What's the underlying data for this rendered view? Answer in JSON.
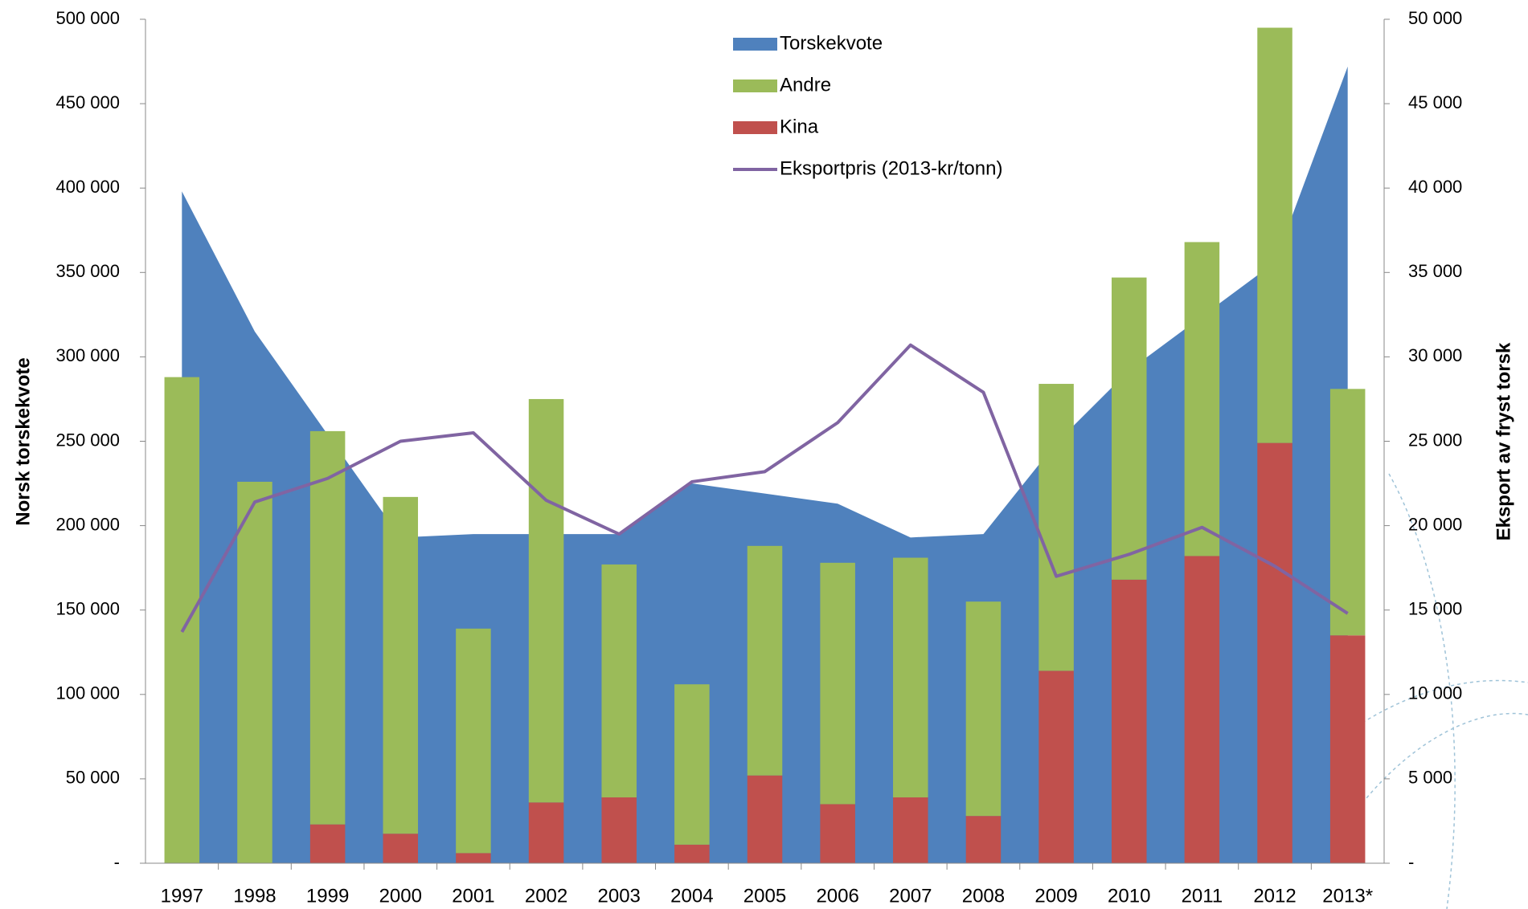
{
  "chart_data": {
    "type": "combo",
    "categories": [
      "1997",
      "1998",
      "1999",
      "2000",
      "2001",
      "2002",
      "2003",
      "2004",
      "2005",
      "2006",
      "2007",
      "2008",
      "2009",
      "2010",
      "2011",
      "2012",
      "2013*"
    ],
    "ylabel": "Norsk torskekvote",
    "y2label": "Eksport av fryst torsk",
    "ylim": [
      0,
      500000
    ],
    "yticks": [
      {
        "value": 0,
        "label": "-"
      },
      {
        "value": 50000,
        "label": "50 000"
      },
      {
        "value": 100000,
        "label": "100 000"
      },
      {
        "value": 150000,
        "label": "150 000"
      },
      {
        "value": 200000,
        "label": "200 000"
      },
      {
        "value": 250000,
        "label": "250 000"
      },
      {
        "value": 300000,
        "label": "300 000"
      },
      {
        "value": 350000,
        "label": "350 000"
      },
      {
        "value": 400000,
        "label": "400 000"
      },
      {
        "value": 450000,
        "label": "450 000"
      },
      {
        "value": 500000,
        "label": "500 000"
      }
    ],
    "y2lim": [
      0,
      50000
    ],
    "y2ticks": [
      {
        "value": 0,
        "label": "-"
      },
      {
        "value": 5000,
        "label": "5 000"
      },
      {
        "value": 10000,
        "label": "10 000"
      },
      {
        "value": 15000,
        "label": "15 000"
      },
      {
        "value": 20000,
        "label": "20 000"
      },
      {
        "value": 25000,
        "label": "25 000"
      },
      {
        "value": 30000,
        "label": "30 000"
      },
      {
        "value": 35000,
        "label": "35 000"
      },
      {
        "value": 40000,
        "label": "40 000"
      },
      {
        "value": 45000,
        "label": "45 000"
      },
      {
        "value": 50000,
        "label": "50 000"
      }
    ],
    "series": [
      {
        "name": "Torskekvote",
        "type": "area",
        "color": "#4f81bd",
        "values": [
          398000,
          315000,
          254000,
          193000,
          195000,
          195000,
          195000,
          225000,
          219000,
          213000,
          193000,
          195000,
          249000,
          292000,
          324000,
          356000,
          472000
        ]
      },
      {
        "name": "Andre",
        "type": "bar",
        "axis": "y2",
        "color": "#9bbb59",
        "values": [
          28800,
          22600,
          23300,
          19950,
          13300,
          23900,
          13800,
          9500,
          13600,
          14300,
          14200,
          12700,
          17000,
          17900,
          18600,
          24600,
          14600
        ]
      },
      {
        "name": "Kina",
        "type": "bar",
        "axis": "y2",
        "color": "#c0504d",
        "values": [
          0,
          0,
          2300,
          1750,
          600,
          3600,
          3900,
          1100,
          5200,
          3500,
          3900,
          2800,
          11400,
          16800,
          18200,
          24900,
          13500
        ]
      },
      {
        "name": "Eksportpris (2013-kr/tonn)",
        "type": "line",
        "axis": "y2",
        "color": "#8064a2",
        "values": [
          13700,
          21400,
          22800,
          25000,
          25500,
          21500,
          19500,
          22600,
          23200,
          26100,
          30700,
          27900,
          17000,
          18300,
          19900,
          17600,
          14800
        ]
      }
    ]
  }
}
